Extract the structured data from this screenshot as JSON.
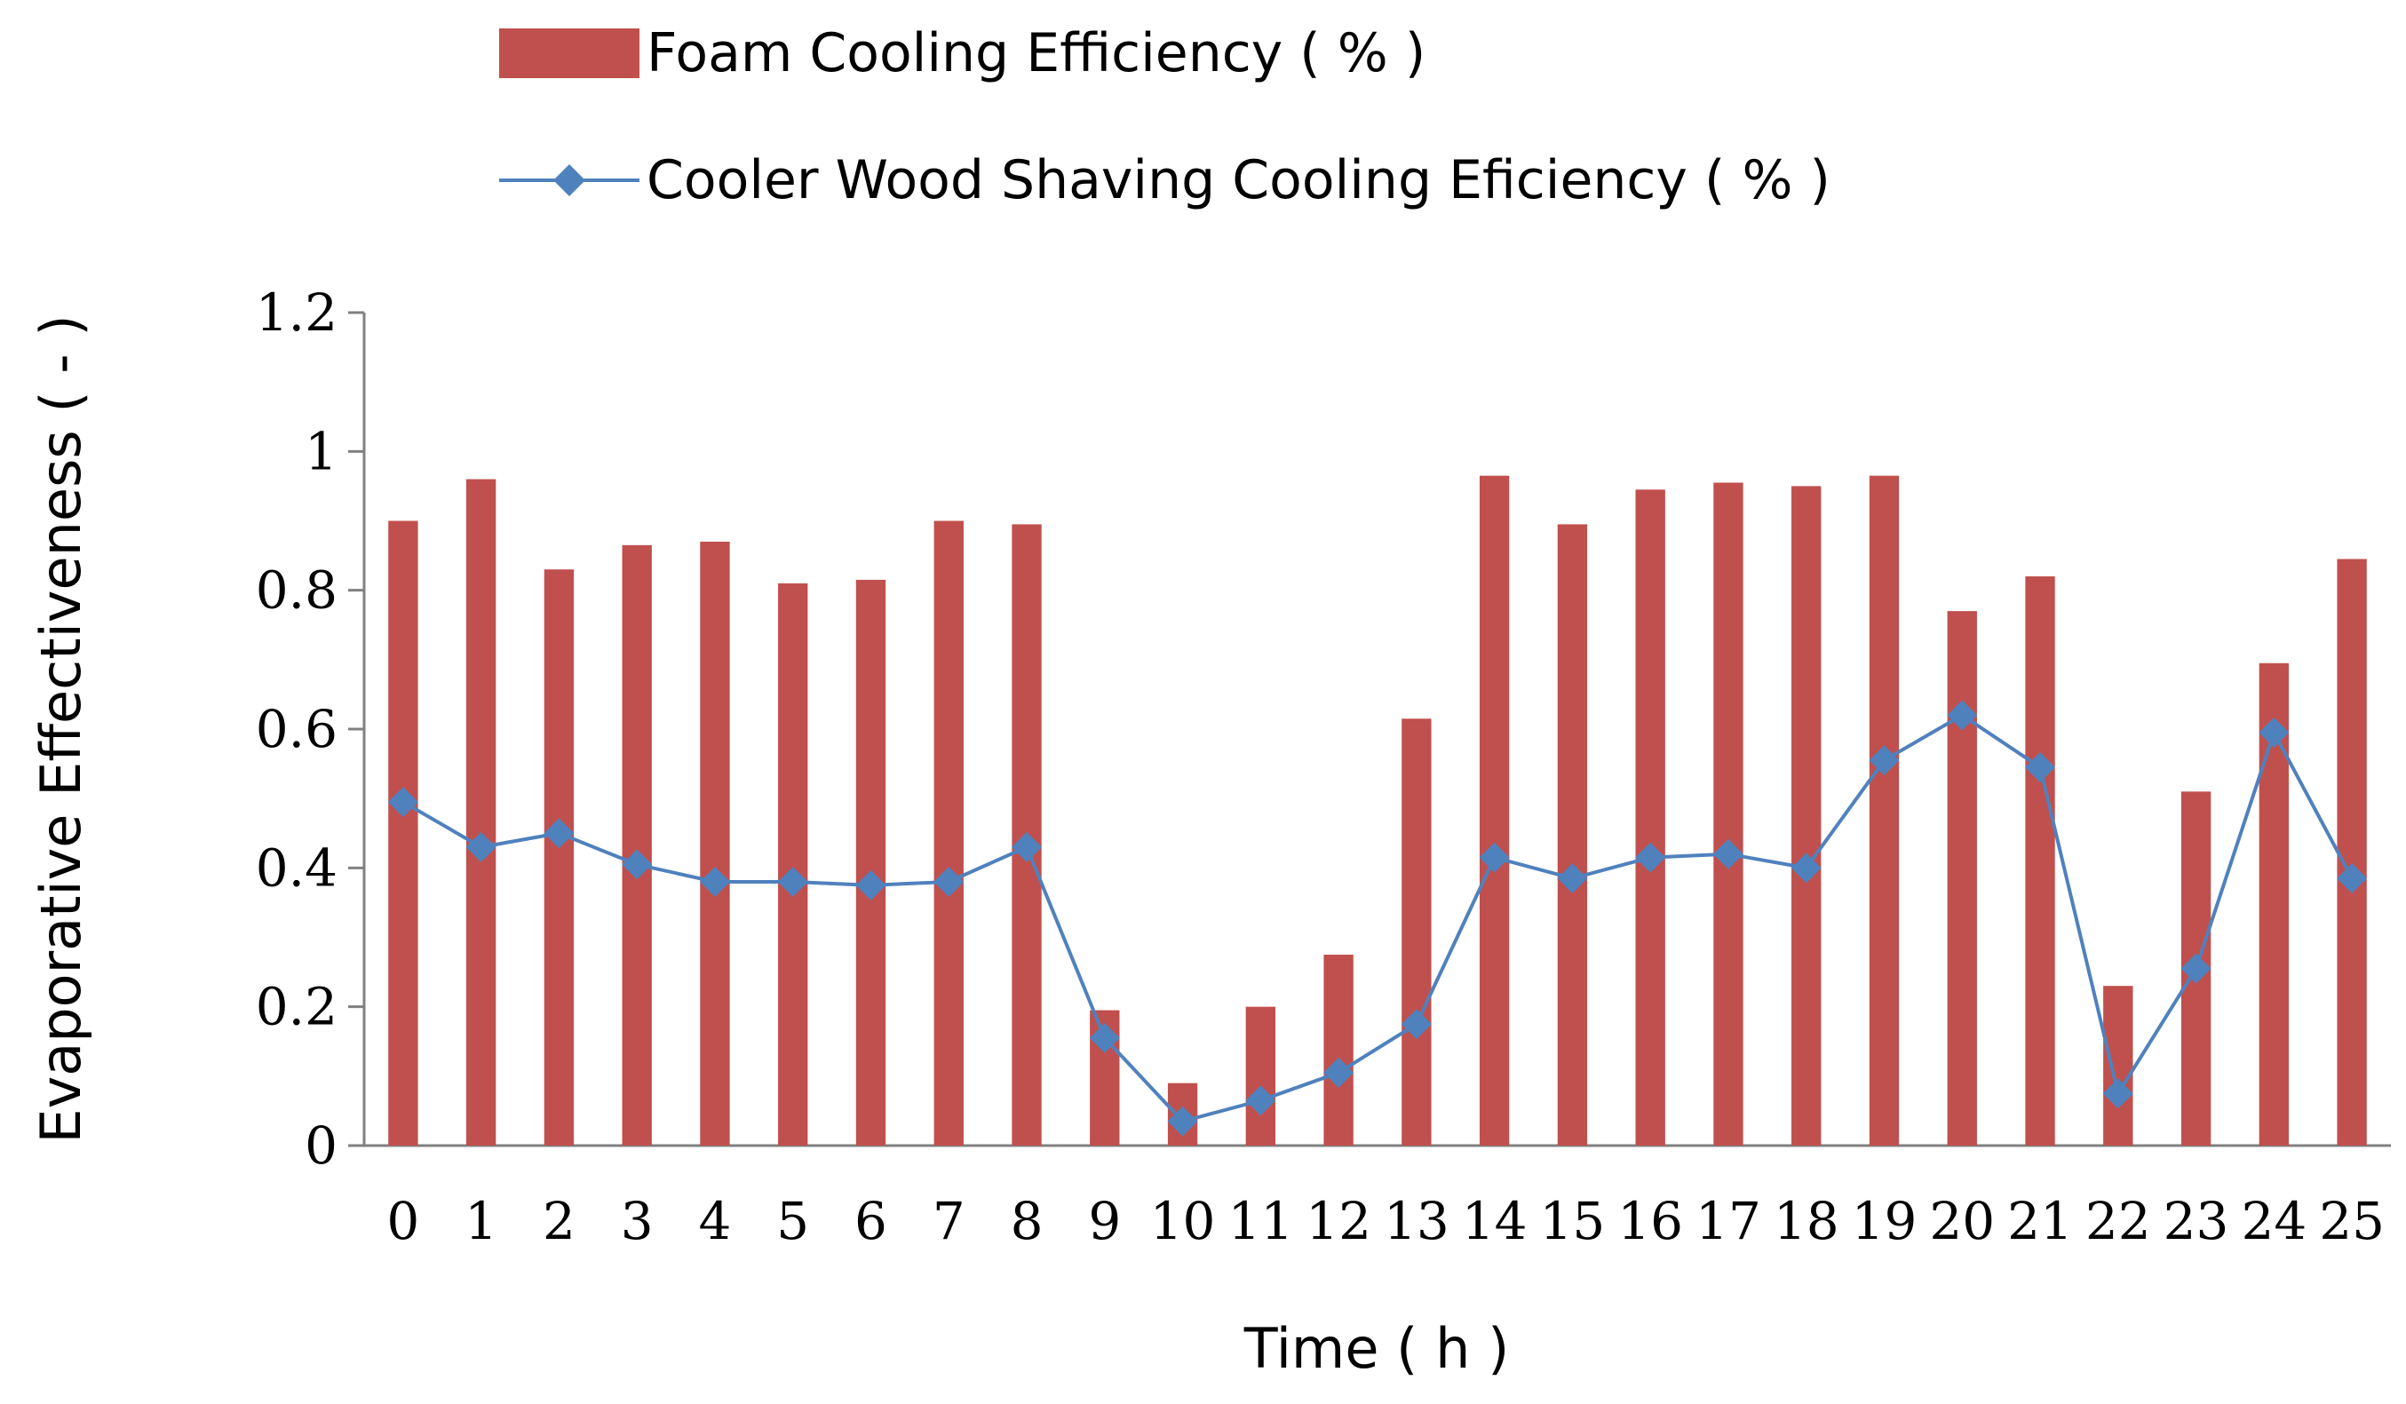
{
  "chart_data": {
    "type": "bar",
    "title": "",
    "xlabel": "Time ( h )",
    "ylabel": "Evaporative Effectiveness ( - )",
    "ylim": [
      0,
      1.2
    ],
    "yticks": [
      "0",
      "0.2",
      "0.4",
      "0.6",
      "0.8",
      "1",
      "1.2"
    ],
    "ytick_values": [
      0,
      0.2,
      0.4,
      0.6,
      0.8,
      1.0,
      1.2
    ],
    "categories": [
      "0",
      "1",
      "2",
      "3",
      "4",
      "5",
      "6",
      "7",
      "8",
      "9",
      "10",
      "11",
      "12",
      "13",
      "14",
      "15",
      "16",
      "17",
      "18",
      "19",
      "20",
      "21",
      "22",
      "23",
      "24",
      "25"
    ],
    "series": [
      {
        "name": "Foam Cooling Efficiency ( % )",
        "type": "bar",
        "color": "#c0504d",
        "values": [
          0.9,
          0.96,
          0.83,
          0.865,
          0.87,
          0.81,
          0.815,
          0.9,
          0.895,
          0.195,
          0.09,
          0.2,
          0.275,
          0.615,
          0.965,
          0.895,
          0.945,
          0.955,
          0.95,
          0.965,
          0.77,
          0.82,
          0.23,
          0.51,
          0.695,
          0.845
        ]
      },
      {
        "name": "Cooler Wood Shaving Cooling Eficiency ( % )",
        "type": "line",
        "color": "#4f81bd",
        "values": [
          0.495,
          0.43,
          0.45,
          0.405,
          0.38,
          0.38,
          0.375,
          0.38,
          0.43,
          0.155,
          0.035,
          0.065,
          0.105,
          0.175,
          0.415,
          0.385,
          0.415,
          0.42,
          0.4,
          0.555,
          0.62,
          0.545,
          0.075,
          0.255,
          0.595,
          0.385
        ]
      }
    ],
    "legend_position": "top"
  }
}
